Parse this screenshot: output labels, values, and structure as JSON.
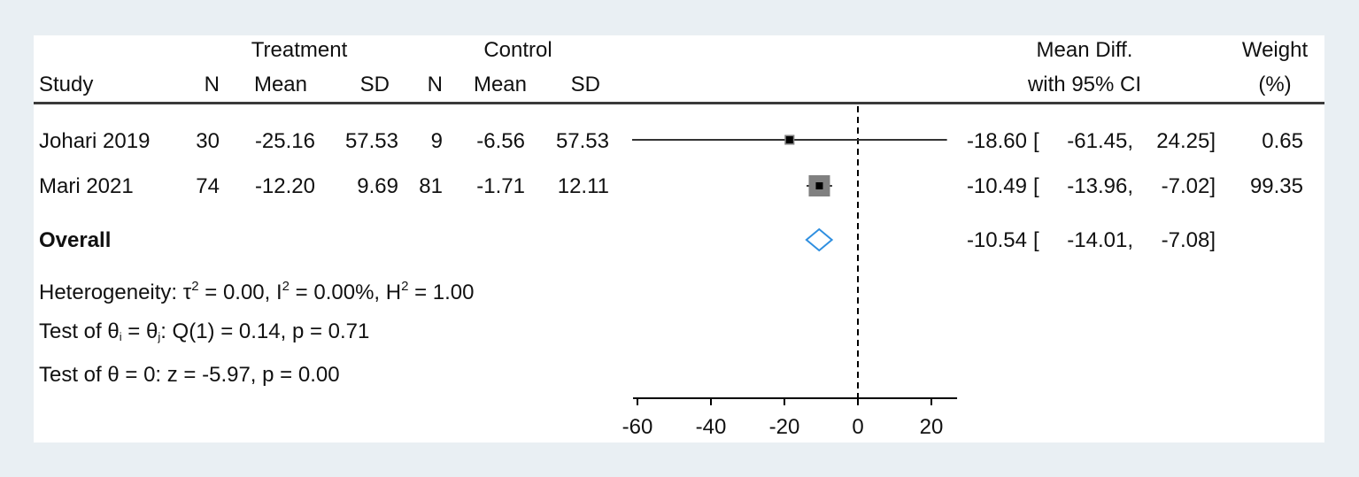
{
  "header": {
    "treatment": "Treatment",
    "control": "Control",
    "study": "Study",
    "n": "N",
    "mean": "Mean",
    "sd": "SD",
    "effect_line1": "Mean Diff.",
    "effect_line2": "with 95% CI",
    "weight_line1": "Weight",
    "weight_line2": "(%)"
  },
  "studies": [
    {
      "name": "Johari 2019",
      "t_n": "30",
      "t_mean": "-25.16",
      "t_sd": "57.53",
      "c_n": "9",
      "c_mean": "-6.56",
      "c_sd": "57.53",
      "md": "-18.60",
      "lo": "-61.45,",
      "hi": "24.25]",
      "weight": "0.65"
    },
    {
      "name": "Mari 2021",
      "t_n": "74",
      "t_mean": "-12.20",
      "t_sd": "9.69",
      "c_n": "81",
      "c_mean": "-1.71",
      "c_sd": "12.11",
      "md": "-10.49",
      "lo": "-13.96,",
      "hi": "-7.02]",
      "weight": "99.35"
    }
  ],
  "overall": {
    "label": "Overall",
    "md": "-10.54",
    "lo": "-14.01,",
    "hi": "-7.08]"
  },
  "stats": {
    "het_prefix": "Heterogeneity: τ",
    "het_tau_sup": "2",
    "het_mid1": " = 0.00, I",
    "het_i_sup": "2",
    "het_mid2": " = 0.00%, H",
    "het_h_sup": "2",
    "het_end": " = 1.00",
    "test1_prefix": "Test of θ",
    "test1_sub_i": "i",
    "test1_mid": " = θ",
    "test1_sub_j": "j",
    "test1_end": ": Q(1) = 0.14, p = 0.71",
    "test2": "Test of θ = 0: z = -5.97, p = 0.00"
  },
  "chart_data": {
    "type": "forest",
    "xlim": [
      -60,
      27
    ],
    "ticks": [
      -60,
      -40,
      -20,
      0,
      20
    ],
    "tick_labels": [
      "-60",
      "-40",
      "-20",
      "0",
      "20"
    ],
    "null_line": 0,
    "studies": [
      {
        "name": "Johari 2019",
        "md": -18.6,
        "lo": -61.45,
        "hi": 24.25,
        "weight": 0.65
      },
      {
        "name": "Mari 2021",
        "md": -10.49,
        "lo": -13.96,
        "hi": -7.02,
        "weight": 99.35
      }
    ],
    "overall": {
      "md": -10.54,
      "lo": -14.01,
      "hi": -7.08
    },
    "colors": {
      "marker": "#808080",
      "ci": "#333333",
      "point": "#000000",
      "diamond": "#2f8fe0"
    }
  }
}
